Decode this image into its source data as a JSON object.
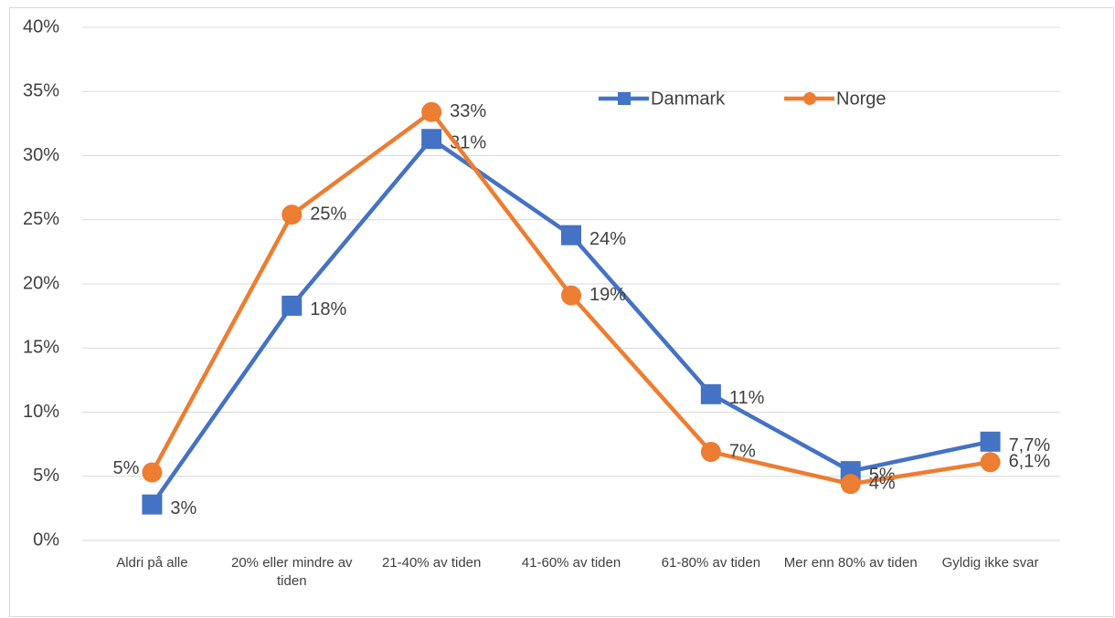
{
  "chart_data": {
    "type": "line",
    "categories": [
      "Aldri på alle",
      "20% eller mindre av tiden",
      "21-40% av tiden",
      "41-60% av tiden",
      "61-80% av tiden",
      "Mer enn 80% av tiden",
      "Gyldig ikke svar"
    ],
    "series": [
      {
        "name": "Danmark",
        "color": "#4472c4",
        "marker": "square",
        "values": [
          2.8,
          18.3,
          31.3,
          23.8,
          11.4,
          5.4,
          7.7
        ],
        "value_labels": [
          "3%",
          "18%",
          "31%",
          "24%",
          "11%",
          "5%",
          "7,7%"
        ]
      },
      {
        "name": "Norge",
        "color": "#ed7d31",
        "marker": "circle",
        "values": [
          5.3,
          25.4,
          33.4,
          19.1,
          6.9,
          4.4,
          6.1
        ],
        "value_labels": [
          "5%",
          "25%",
          "33%",
          "19%",
          "7%",
          "4%",
          "6,1%"
        ]
      }
    ],
    "ylim": [
      0,
      40
    ],
    "yticks": [
      {
        "value": 0,
        "label": "0%"
      },
      {
        "value": 5,
        "label": "5%"
      },
      {
        "value": 10,
        "label": "10%"
      },
      {
        "value": 15,
        "label": "15%"
      },
      {
        "value": 20,
        "label": "20%"
      },
      {
        "value": 25,
        "label": "25%"
      },
      {
        "value": 30,
        "label": "30%"
      },
      {
        "value": 35,
        "label": "35%"
      },
      {
        "value": 40,
        "label": "40%"
      }
    ],
    "grid": true,
    "legend": "top-right"
  }
}
